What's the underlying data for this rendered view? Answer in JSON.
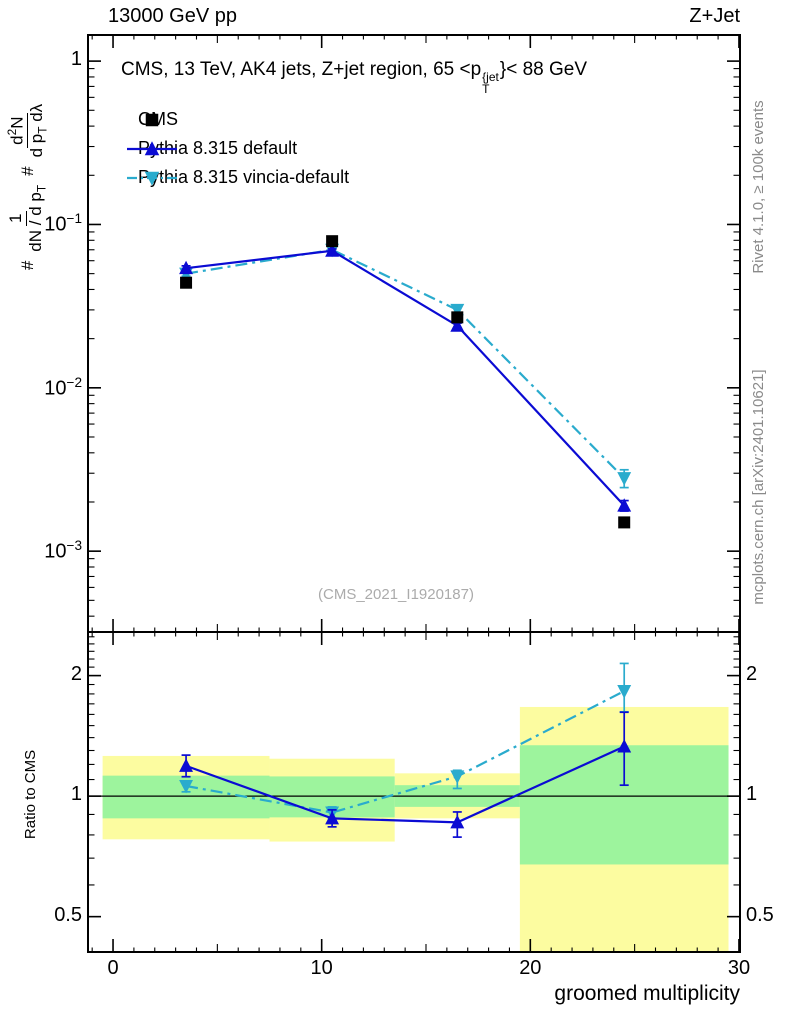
{
  "header": {
    "left": "13000 GeV pp",
    "right": "Z+Jet"
  },
  "panel_title": {
    "pre": "CMS, 13 TeV, AK4 jets, Z+jet region, 65 <p",
    "sup": "{jet",
    "sub": "T",
    "post": "}< 88 GeV"
  },
  "legend": [
    {
      "label": "CMS",
      "marker": "square",
      "color": "#000000",
      "linestyle": "none"
    },
    {
      "label": "Pythia 8.315 default",
      "marker": "triangle-up",
      "color": "#0b0bd3",
      "linestyle": "solid"
    },
    {
      "label": "Pythia 8.315 vincia-default",
      "marker": "triangle-down",
      "color": "#2aabcd",
      "linestyle": "dashdot"
    }
  ],
  "ylabel_top": {
    "hash1": "#",
    "num1": "1",
    "den1_main": "dN / d p",
    "den1_sub": "T",
    "hash2": "#",
    "num2_pre": "d",
    "num2_sup": "2",
    "num2_post": "N",
    "den2_main": "d p",
    "den2_sub": "T",
    "den2_tail": " dλ"
  },
  "notes": {
    "rivet": "Rivet 4.1.0, ≥ 100k events",
    "mcplots": "mcplots.cern.ch [arXiv:2401.10621]",
    "watermark": "(CMS_2021_I1920187)"
  },
  "axes": {
    "xlabel": "groomed multiplicity",
    "ratio_ylabel": "Ratio to CMS",
    "x_ticks": [
      {
        "v": 0,
        "t": "0"
      },
      {
        "v": 10,
        "t": "10"
      },
      {
        "v": 20,
        "t": "20"
      },
      {
        "v": 30,
        "t": "30"
      }
    ],
    "top_y_ticks": [
      {
        "v": 1,
        "t": "1",
        "e": null
      },
      {
        "v": 0.1,
        "t": "10",
        "e": "−1"
      },
      {
        "v": 0.01,
        "t": "10",
        "e": "−2"
      },
      {
        "v": 0.001,
        "t": "10",
        "e": "−3"
      }
    ],
    "ratio_y_ticks": [
      {
        "v": 2,
        "t": "2"
      },
      {
        "v": 1,
        "t": "1"
      },
      {
        "v": 0.5,
        "t": "0.5"
      }
    ]
  },
  "colors": {
    "cms": "#000000",
    "default": "#0b0bd3",
    "vincia": "#2aabcd",
    "band_yellow": "#fcfca0",
    "band_green": "#9df49d",
    "frame": "#000000",
    "note_gray": "#8a8a8a",
    "watermark_gray": "#ababab"
  },
  "chart_data": [
    {
      "type": "line",
      "panel": "main",
      "title": "CMS, 13 TeV, AK4 jets, Z+jet region, 65 < pT{jet} < 88 GeV",
      "xlabel": "groomed multiplicity",
      "ylabel": "# 1/(dN/dpT) # d2N/(dpT dlambda)",
      "yscale": "log",
      "xlim": [
        -1.2,
        30.05
      ],
      "ylim": [
        0.00032,
        1.445
      ],
      "x": [
        3.5,
        10.5,
        16.5,
        24.5
      ],
      "series": [
        {
          "name": "Pythia 8.315 vincia-default",
          "marker": "triangle-down",
          "linestyle": "dashdot",
          "color": "#2aabcd",
          "values": [
            0.05,
            0.07,
            0.03,
            0.0028
          ],
          "yerr_lo": [
            0.0483,
            0.0682,
            0.0288,
            0.00245
          ],
          "yerr_hi": [
            0.0517,
            0.0718,
            0.0312,
            0.00315
          ]
        },
        {
          "name": "Pythia 8.315 default",
          "marker": "triangle-up",
          "linestyle": "solid",
          "color": "#0b0bd3",
          "values": [
            0.054,
            0.069,
            0.024,
            0.0019
          ],
          "yerr_lo": [
            0.0522,
            0.0672,
            0.0231,
            0.00176
          ],
          "yerr_hi": [
            0.0558,
            0.0708,
            0.0249,
            0.00204
          ]
        },
        {
          "name": "CMS",
          "marker": "square",
          "linestyle": "none",
          "color": "#000000",
          "values": [
            0.044,
            0.079,
            0.027,
            0.0015
          ],
          "yerr_lo": [
            0.0425,
            0.0765,
            0.0261,
            0.00144
          ],
          "yerr_hi": [
            0.0455,
            0.0815,
            0.0279,
            0.00156
          ]
        }
      ]
    },
    {
      "type": "ratio",
      "panel": "ratio",
      "ylabel": "Ratio to CMS",
      "yscale": "log",
      "xlim": [
        -1.2,
        30.05
      ],
      "ylim": [
        0.408,
        2.57
      ],
      "ref_line": 1,
      "x": [
        3.5,
        10.5,
        16.5,
        24.5
      ],
      "bands": {
        "edges": [
          -0.5,
          7.5,
          13.5,
          19.5,
          29.5
        ],
        "yellow": [
          [
            0.78,
            1.26
          ],
          [
            0.77,
            1.24
          ],
          [
            0.88,
            1.14
          ],
          [
            0.41,
            1.67
          ]
        ],
        "green": [
          [
            0.88,
            1.125
          ],
          [
            0.885,
            1.12
          ],
          [
            0.94,
            1.065
          ],
          [
            0.675,
            1.34
          ]
        ]
      },
      "series": [
        {
          "name": "Pythia 8.315 vincia-default",
          "marker": "triangle-down",
          "linestyle": "dashdot",
          "color": "#2aabcd",
          "values": [
            1.06,
            0.91,
            1.12,
            1.83
          ],
          "yerr_lo": [
            1.025,
            0.88,
            1.045,
            1.624
          ],
          "yerr_hi": [
            1.086,
            0.94,
            1.16,
            2.145
          ]
        },
        {
          "name": "Pythia 8.315 default",
          "marker": "triangle-up",
          "linestyle": "solid",
          "color": "#0b0bd3",
          "values": [
            1.19,
            0.88,
            0.86,
            1.33
          ],
          "yerr_lo": [
            1.118,
            0.838,
            0.79,
            1.065
          ],
          "yerr_hi": [
            1.266,
            0.924,
            0.913,
            1.62
          ]
        }
      ]
    }
  ]
}
